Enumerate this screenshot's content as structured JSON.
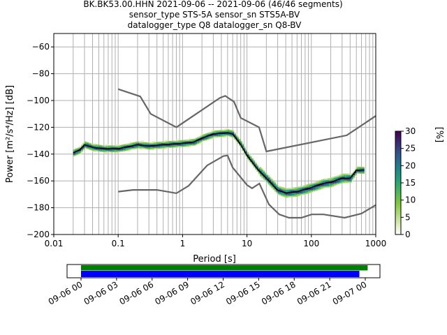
{
  "chart_data": {
    "type": "heatmap",
    "title_lines": [
      "BK.BK53.00.HHN   2021-09-06 -- 2021-09-06  (46/46 segments)",
      "sensor_type STS-5A sensor_sn STS5A-BV",
      "datalogger_type Q8 datalogger_sn Q8-BV"
    ],
    "xlabel": "Period [s]",
    "ylabel": "Power [m²/s⁴/Hz] [dB]",
    "xscale": "log",
    "xlim": [
      0.01,
      1000
    ],
    "ylim": [
      -200,
      -50
    ],
    "xticks": [
      {
        "v": 0.01,
        "l": "0.01"
      },
      {
        "v": 0.1,
        "l": "0.1"
      },
      {
        "v": 1,
        "l": "1"
      },
      {
        "v": 10,
        "l": "10"
      },
      {
        "v": 100,
        "l": "100"
      },
      {
        "v": 1000,
        "l": "1000"
      }
    ],
    "yticks": [
      -60,
      -80,
      -100,
      -120,
      -140,
      -160,
      -180,
      -200
    ],
    "grid": true,
    "colorbar": {
      "label": "[%]",
      "min": 0,
      "max": 30,
      "ticks": [
        0,
        5,
        10,
        15,
        20,
        25,
        30
      ]
    },
    "mean": [
      [
        0.02,
        -139
      ],
      [
        0.025,
        -137
      ],
      [
        0.03,
        -133
      ],
      [
        0.04,
        -135
      ],
      [
        0.06,
        -136
      ],
      [
        0.1,
        -136
      ],
      [
        0.2,
        -133
      ],
      [
        0.3,
        -134
      ],
      [
        0.5,
        -133
      ],
      [
        1,
        -132
      ],
      [
        1.5,
        -131
      ],
      [
        2,
        -128
      ],
      [
        3,
        -125
      ],
      [
        5,
        -124
      ],
      [
        6,
        -125
      ],
      [
        8,
        -133
      ],
      [
        10,
        -141
      ],
      [
        15,
        -152
      ],
      [
        20,
        -158
      ],
      [
        30,
        -167
      ],
      [
        40,
        -169
      ],
      [
        60,
        -168
      ],
      [
        100,
        -165
      ],
      [
        150,
        -162
      ],
      [
        200,
        -161
      ],
      [
        300,
        -158
      ],
      [
        400,
        -158
      ],
      [
        500,
        -152
      ],
      [
        650,
        -152
      ]
    ],
    "nhnm": [
      [
        0.1,
        -91.5
      ],
      [
        0.22,
        -97
      ],
      [
        0.32,
        -110
      ],
      [
        0.8,
        -120
      ],
      [
        3.8,
        -98
      ],
      [
        4.6,
        -96.5
      ],
      [
        6.3,
        -101
      ],
      [
        8,
        -113
      ],
      [
        15.4,
        -120
      ],
      [
        20,
        -138
      ],
      [
        354,
        -126
      ],
      [
        1000,
        -111.5
      ]
    ],
    "nlnm": [
      [
        0.1,
        -168
      ],
      [
        0.17,
        -166.7
      ],
      [
        0.4,
        -166.7
      ],
      [
        0.8,
        -169.2
      ],
      [
        1.24,
        -163.7
      ],
      [
        2.4,
        -148.5
      ],
      [
        4.3,
        -141.5
      ],
      [
        5,
        -141
      ],
      [
        6,
        -150
      ],
      [
        10,
        -163
      ],
      [
        12,
        -165.5
      ],
      [
        15.6,
        -162
      ],
      [
        21.9,
        -177.5
      ],
      [
        31.6,
        -185
      ],
      [
        45,
        -187.5
      ],
      [
        70,
        -187.5
      ],
      [
        101,
        -185
      ],
      [
        154,
        -185
      ],
      [
        328,
        -187.5
      ],
      [
        600,
        -184.4
      ],
      [
        1000,
        -178
      ]
    ],
    "timeline": {
      "ticks": [
        "09-06 00",
        "09-06 03",
        "09-06 06",
        "09-06 09",
        "09-06 12",
        "09-06 15",
        "09-06 18",
        "09-06 21",
        "09-07 00"
      ],
      "data_coverage_hours": [
        0,
        24.2
      ],
      "psd_coverage_hours": [
        0,
        23.5
      ],
      "colors": {
        "data": "#008000",
        "psd": "#0000ff"
      }
    }
  }
}
